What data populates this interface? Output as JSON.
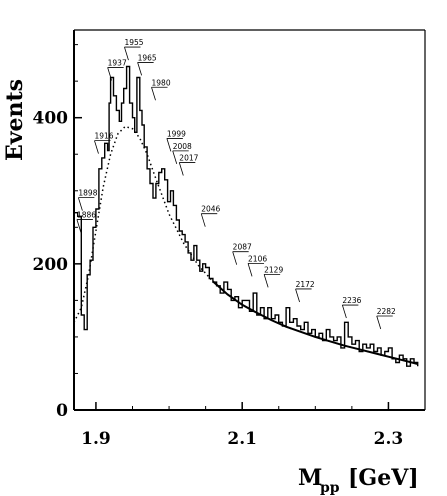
{
  "chart_data": {
    "type": "line",
    "xlabel_main": "M",
    "xlabel_sub": "pp",
    "xlabel_unit": "[GeV]",
    "ylabel": "Events",
    "xlim": [
      1.87,
      2.35
    ],
    "ylim": [
      0,
      520
    ],
    "x_ticks": [
      {
        "value": 1.9,
        "label": "1.9"
      },
      {
        "value": 2.1,
        "label": "2.1"
      },
      {
        "value": 2.3,
        "label": "2.3"
      }
    ],
    "y_ticks": [
      {
        "value": 0,
        "label": "0"
      },
      {
        "value": 200,
        "label": "200"
      },
      {
        "value": 400,
        "label": "400"
      }
    ],
    "grid": false,
    "series": [
      {
        "style": "histogram",
        "x": [
          1.87,
          1.875,
          1.88,
          1.884,
          1.888,
          1.892,
          1.896,
          1.9,
          1.904,
          1.908,
          1.912,
          1.916,
          1.918,
          1.92,
          1.924,
          1.928,
          1.932,
          1.935,
          1.938,
          1.942,
          1.946,
          1.95,
          1.953,
          1.956,
          1.96,
          1.963,
          1.966,
          1.97,
          1.974,
          1.978,
          1.982,
          1.986,
          1.99,
          1.994,
          1.998,
          2.002,
          2.006,
          2.01,
          2.014,
          2.018,
          2.022,
          2.026,
          2.03,
          2.034,
          2.038,
          2.042,
          2.046,
          2.05,
          2.055,
          2.06,
          2.065,
          2.07,
          2.075,
          2.08,
          2.085,
          2.09,
          2.095,
          2.1,
          2.105,
          2.11,
          2.115,
          2.12,
          2.125,
          2.13,
          2.135,
          2.14,
          2.145,
          2.15,
          2.155,
          2.16,
          2.165,
          2.17,
          2.175,
          2.18,
          2.185,
          2.19,
          2.195,
          2.2,
          2.205,
          2.21,
          2.215,
          2.22,
          2.225,
          2.23,
          2.235,
          2.24,
          2.245,
          2.25,
          2.255,
          2.26,
          2.265,
          2.27,
          2.275,
          2.28,
          2.285,
          2.29,
          2.295,
          2.3,
          2.305,
          2.31,
          2.315,
          2.32,
          2.325,
          2.33,
          2.335,
          2.34
        ],
        "y": [
          270,
          265,
          130,
          110,
          185,
          205,
          250,
          275,
          330,
          345,
          365,
          355,
          420,
          455,
          430,
          410,
          395,
          420,
          440,
          470,
          420,
          400,
          380,
          455,
          410,
          390,
          360,
          330,
          310,
          290,
          310,
          325,
          330,
          315,
          285,
          300,
          280,
          260,
          245,
          240,
          230,
          215,
          205,
          225,
          205,
          190,
          200,
          195,
          180,
          175,
          170,
          160,
          175,
          165,
          150,
          155,
          140,
          150,
          150,
          135,
          160,
          130,
          140,
          125,
          140,
          125,
          130,
          120,
          115,
          140,
          120,
          125,
          115,
          110,
          120,
          105,
          110,
          100,
          105,
          95,
          110,
          100,
          95,
          100,
          85,
          120,
          100,
          90,
          95,
          80,
          90,
          85,
          90,
          80,
          85,
          75,
          80,
          85,
          70,
          65,
          75,
          70,
          60,
          70,
          65,
          60
        ]
      },
      {
        "style": "dotted",
        "x": [
          1.87,
          1.88,
          1.89,
          1.9,
          1.91,
          1.92,
          1.93,
          1.94,
          1.95,
          1.96,
          1.97,
          1.98,
          1.99,
          2.0,
          2.02,
          2.04,
          2.06,
          2.08,
          2.1,
          2.12,
          2.14,
          2.16,
          2.18,
          2.2,
          2.22,
          2.24,
          2.26,
          2.28,
          2.3,
          2.32,
          2.34
        ],
        "y": [
          120,
          140,
          185,
          245,
          305,
          350,
          378,
          388,
          385,
          372,
          350,
          322,
          295,
          268,
          228,
          198,
          176,
          158,
          144,
          133,
          123,
          114,
          107,
          100,
          94,
          88,
          83,
          78,
          73,
          68,
          63
        ]
      }
    ],
    "annotations": [
      {
        "label": "1898",
        "x": 1.876,
        "y": 292
      },
      {
        "label": "1886",
        "x": 1.874,
        "y": 262
      },
      {
        "label": "1916",
        "x": 1.898,
        "y": 370
      },
      {
        "label": "1937",
        "x": 1.916,
        "y": 470
      },
      {
        "label": "1955",
        "x": 1.939,
        "y": 498
      },
      {
        "label": "1965",
        "x": 1.957,
        "y": 477
      },
      {
        "label": "1980",
        "x": 1.976,
        "y": 443
      },
      {
        "label": "1999",
        "x": 1.997,
        "y": 373
      },
      {
        "label": "2008",
        "x": 2.005,
        "y": 356
      },
      {
        "label": "2017",
        "x": 2.014,
        "y": 340
      },
      {
        "label": "2046",
        "x": 2.044,
        "y": 270
      },
      {
        "label": "2087",
        "x": 2.087,
        "y": 218
      },
      {
        "label": "2106",
        "x": 2.108,
        "y": 202
      },
      {
        "label": "2129",
        "x": 2.13,
        "y": 187
      },
      {
        "label": "2172",
        "x": 2.173,
        "y": 167
      },
      {
        "label": "2236",
        "x": 2.237,
        "y": 145
      },
      {
        "label": "2282",
        "x": 2.284,
        "y": 130
      }
    ]
  }
}
